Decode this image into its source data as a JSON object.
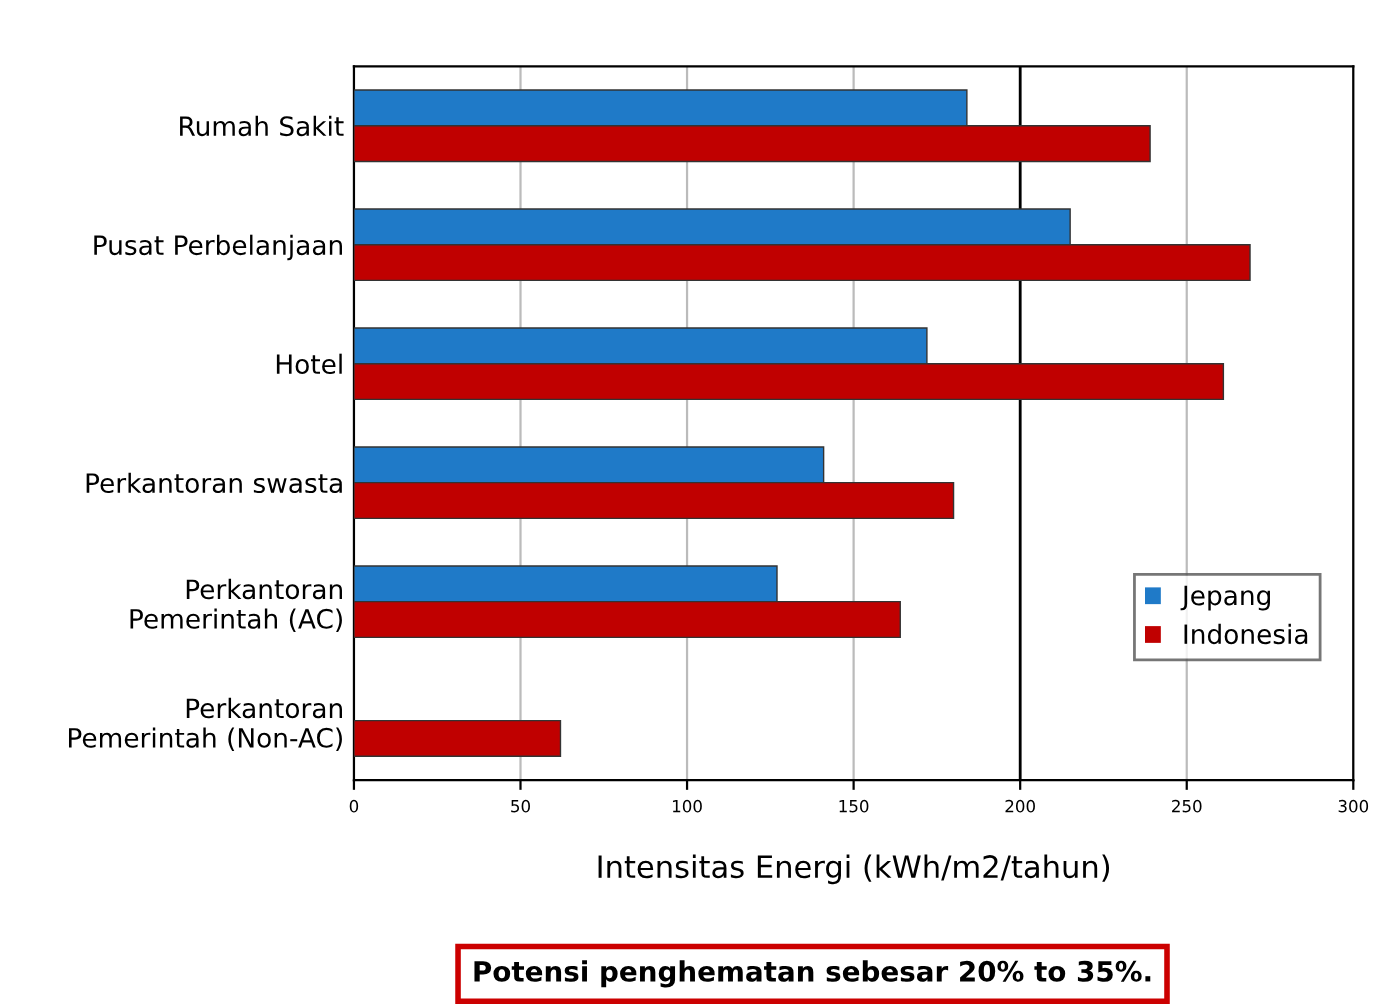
{
  "chart_data": {
    "type": "bar",
    "orientation": "horizontal",
    "xlabel": "Intensitas Energi (kWh/m2/tahun)",
    "categories": [
      "Rumah Sakit",
      "Pusat Perbelanjaan",
      "Hotel",
      "Perkantoran swasta",
      "Perkantoran\nPemerintah (AC)",
      "Perkantoran\nPemerintah (Non-AC)"
    ],
    "series": [
      {
        "name": "Jepang",
        "color": "#1f7ac8",
        "values": [
          184,
          215,
          172,
          141,
          127,
          null
        ]
      },
      {
        "name": "Indonesia",
        "color": "#c00000",
        "values": [
          239,
          269,
          261,
          180,
          164,
          62
        ]
      }
    ],
    "xlim": [
      0,
      300
    ],
    "xticks": [
      0,
      50,
      100,
      150,
      200,
      250,
      300
    ],
    "grid": "x",
    "legend": "right",
    "ref_lines": [
      {
        "axis": "x",
        "value": 200,
        "color": "#000000"
      }
    ],
    "annotations": [
      "Potensi penghematan sebesar 20% to 35%."
    ]
  }
}
